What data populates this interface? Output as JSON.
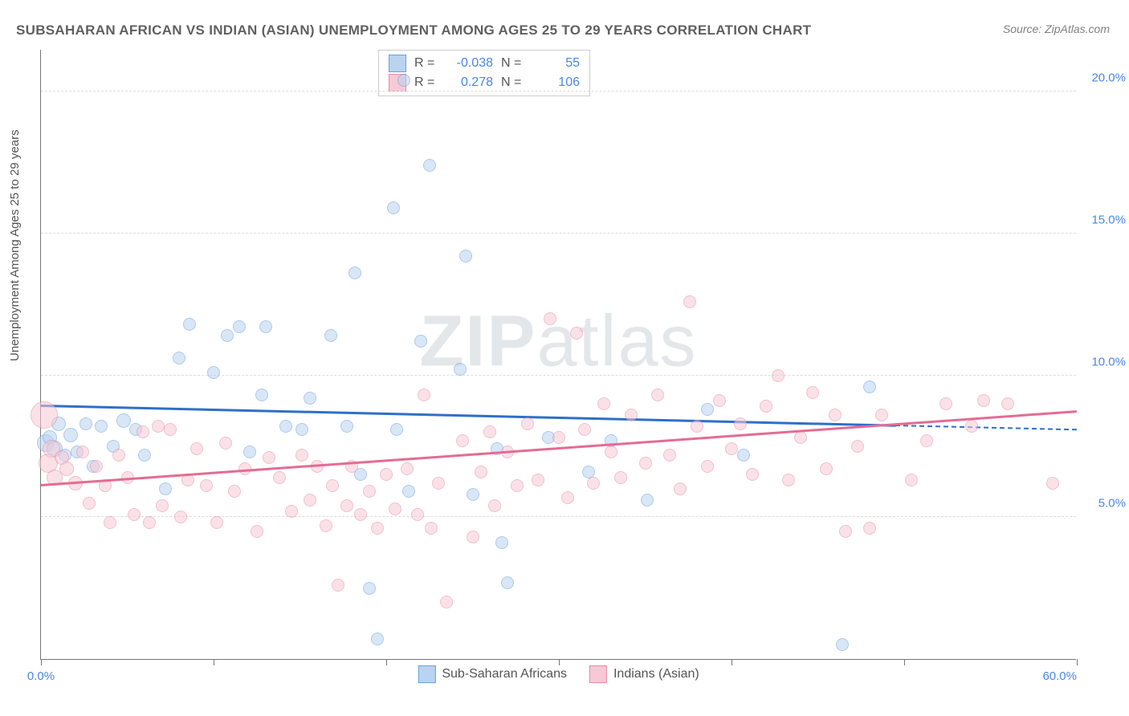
{
  "title": "SUBSAHARAN AFRICAN VS INDIAN (ASIAN) UNEMPLOYMENT AMONG AGES 25 TO 29 YEARS CORRELATION CHART",
  "source": "Source: ZipAtlas.com",
  "ylabel": "Unemployment Among Ages 25 to 29 years",
  "watermark_a": "ZIP",
  "watermark_b": "atlas",
  "chart": {
    "type": "scatter",
    "xlim": [
      0,
      60
    ],
    "ylim": [
      0,
      21.5
    ],
    "xticks": [
      0,
      10,
      20,
      30,
      40,
      50,
      60
    ],
    "xtick_labels_shown": {
      "0": "0.0%",
      "60": "60.0%"
    },
    "yticks": [
      5,
      10,
      15,
      20
    ],
    "ytick_labels": [
      "5.0%",
      "10.0%",
      "15.0%",
      "20.0%"
    ],
    "grid_color": "#dcdcdc",
    "axis_color": "#777777",
    "background_color": "#ffffff",
    "axis_label_color": "#4a86e8"
  },
  "series": [
    {
      "name": "Sub-Saharan Africans",
      "fill_color": "#b9d3f0",
      "stroke_color": "#6aa0de",
      "fill_opacity": 0.55,
      "line_color": "#2e6fc9",
      "correlation": {
        "R": "-0.038",
        "N": "55"
      },
      "trend": {
        "x1": 0,
        "y1": 8.9,
        "x2": 49.5,
        "y2": 8.2,
        "dash_x2": 60,
        "dash_y2": 8.05
      },
      "points": [
        {
          "x": 0.3,
          "y": 7.6,
          "r": 11
        },
        {
          "x": 0.5,
          "y": 7.8,
          "r": 9
        },
        {
          "x": 0.8,
          "y": 7.4,
          "r": 10
        },
        {
          "x": 1.0,
          "y": 8.3,
          "r": 9
        },
        {
          "x": 1.4,
          "y": 7.2,
          "r": 8
        },
        {
          "x": 1.7,
          "y": 7.9,
          "r": 9
        },
        {
          "x": 2.1,
          "y": 7.3,
          "r": 8
        },
        {
          "x": 2.6,
          "y": 8.3,
          "r": 8
        },
        {
          "x": 3.0,
          "y": 6.8,
          "r": 8
        },
        {
          "x": 3.5,
          "y": 8.2,
          "r": 8
        },
        {
          "x": 4.2,
          "y": 7.5,
          "r": 8
        },
        {
          "x": 4.8,
          "y": 8.4,
          "r": 9
        },
        {
          "x": 5.5,
          "y": 8.1,
          "r": 8
        },
        {
          "x": 6.0,
          "y": 7.2,
          "r": 8
        },
        {
          "x": 7.2,
          "y": 6.0,
          "r": 8
        },
        {
          "x": 8.0,
          "y": 10.6,
          "r": 8
        },
        {
          "x": 8.6,
          "y": 11.8,
          "r": 8
        },
        {
          "x": 10.0,
          "y": 10.1,
          "r": 8
        },
        {
          "x": 10.8,
          "y": 11.4,
          "r": 8
        },
        {
          "x": 11.5,
          "y": 11.7,
          "r": 8
        },
        {
          "x": 12.1,
          "y": 7.3,
          "r": 8
        },
        {
          "x": 12.8,
          "y": 9.3,
          "r": 8
        },
        {
          "x": 13.0,
          "y": 11.7,
          "r": 8
        },
        {
          "x": 14.2,
          "y": 8.2,
          "r": 8
        },
        {
          "x": 15.1,
          "y": 8.1,
          "r": 8
        },
        {
          "x": 15.6,
          "y": 9.2,
          "r": 8
        },
        {
          "x": 16.8,
          "y": 11.4,
          "r": 8
        },
        {
          "x": 17.7,
          "y": 8.2,
          "r": 8
        },
        {
          "x": 18.2,
          "y": 13.6,
          "r": 8
        },
        {
          "x": 18.5,
          "y": 6.5,
          "r": 8
        },
        {
          "x": 19.0,
          "y": 2.5,
          "r": 8
        },
        {
          "x": 19.5,
          "y": 0.7,
          "r": 8
        },
        {
          "x": 20.4,
          "y": 15.9,
          "r": 8
        },
        {
          "x": 20.6,
          "y": 8.1,
          "r": 8
        },
        {
          "x": 21.0,
          "y": 20.4,
          "r": 8
        },
        {
          "x": 21.3,
          "y": 5.9,
          "r": 8
        },
        {
          "x": 22.0,
          "y": 11.2,
          "r": 8
        },
        {
          "x": 22.5,
          "y": 17.4,
          "r": 8
        },
        {
          "x": 24.3,
          "y": 10.2,
          "r": 8
        },
        {
          "x": 24.6,
          "y": 14.2,
          "r": 8
        },
        {
          "x": 25.0,
          "y": 5.8,
          "r": 8
        },
        {
          "x": 26.4,
          "y": 7.4,
          "r": 8
        },
        {
          "x": 26.7,
          "y": 4.1,
          "r": 8
        },
        {
          "x": 27.0,
          "y": 2.7,
          "r": 8
        },
        {
          "x": 29.4,
          "y": 7.8,
          "r": 8
        },
        {
          "x": 31.7,
          "y": 6.6,
          "r": 8
        },
        {
          "x": 33.0,
          "y": 7.7,
          "r": 8
        },
        {
          "x": 35.1,
          "y": 5.6,
          "r": 8
        },
        {
          "x": 38.6,
          "y": 8.8,
          "r": 8
        },
        {
          "x": 40.7,
          "y": 7.2,
          "r": 8
        },
        {
          "x": 46.4,
          "y": 0.5,
          "r": 8
        },
        {
          "x": 48.0,
          "y": 9.6,
          "r": 8
        }
      ]
    },
    {
      "name": "Indians (Asian)",
      "fill_color": "#f7c9d6",
      "stroke_color": "#e88ba6",
      "fill_opacity": 0.55,
      "line_color": "#e56b93",
      "correlation": {
        "R": "0.278",
        "N": "106"
      },
      "trend": {
        "x1": 0,
        "y1": 6.1,
        "x2": 60,
        "y2": 8.7
      },
      "points": [
        {
          "x": 0.2,
          "y": 8.6,
          "r": 17
        },
        {
          "x": 0.4,
          "y": 6.9,
          "r": 12
        },
        {
          "x": 0.6,
          "y": 7.4,
          "r": 11
        },
        {
          "x": 0.8,
          "y": 6.4,
          "r": 10
        },
        {
          "x": 1.2,
          "y": 7.1,
          "r": 9
        },
        {
          "x": 1.5,
          "y": 6.7,
          "r": 9
        },
        {
          "x": 2.0,
          "y": 6.2,
          "r": 9
        },
        {
          "x": 2.4,
          "y": 7.3,
          "r": 8
        },
        {
          "x": 2.8,
          "y": 5.5,
          "r": 8
        },
        {
          "x": 3.2,
          "y": 6.8,
          "r": 8
        },
        {
          "x": 3.7,
          "y": 6.1,
          "r": 8
        },
        {
          "x": 4.0,
          "y": 4.8,
          "r": 8
        },
        {
          "x": 4.5,
          "y": 7.2,
          "r": 8
        },
        {
          "x": 5.0,
          "y": 6.4,
          "r": 8
        },
        {
          "x": 5.4,
          "y": 5.1,
          "r": 8
        },
        {
          "x": 5.9,
          "y": 8.0,
          "r": 8
        },
        {
          "x": 6.3,
          "y": 4.8,
          "r": 8
        },
        {
          "x": 6.8,
          "y": 8.2,
          "r": 8
        },
        {
          "x": 7.0,
          "y": 5.4,
          "r": 8
        },
        {
          "x": 7.5,
          "y": 8.1,
          "r": 8
        },
        {
          "x": 8.1,
          "y": 5.0,
          "r": 8
        },
        {
          "x": 8.5,
          "y": 6.3,
          "r": 8
        },
        {
          "x": 9.0,
          "y": 7.4,
          "r": 8
        },
        {
          "x": 9.6,
          "y": 6.1,
          "r": 8
        },
        {
          "x": 10.2,
          "y": 4.8,
          "r": 8
        },
        {
          "x": 10.7,
          "y": 7.6,
          "r": 8
        },
        {
          "x": 11.2,
          "y": 5.9,
          "r": 8
        },
        {
          "x": 11.8,
          "y": 6.7,
          "r": 8
        },
        {
          "x": 12.5,
          "y": 4.5,
          "r": 8
        },
        {
          "x": 13.2,
          "y": 7.1,
          "r": 8
        },
        {
          "x": 13.8,
          "y": 6.4,
          "r": 8
        },
        {
          "x": 14.5,
          "y": 5.2,
          "r": 8
        },
        {
          "x": 15.1,
          "y": 7.2,
          "r": 8
        },
        {
          "x": 15.6,
          "y": 5.6,
          "r": 8
        },
        {
          "x": 16.0,
          "y": 6.8,
          "r": 8
        },
        {
          "x": 16.5,
          "y": 4.7,
          "r": 8
        },
        {
          "x": 16.9,
          "y": 6.1,
          "r": 8
        },
        {
          "x": 17.2,
          "y": 2.6,
          "r": 8
        },
        {
          "x": 17.7,
          "y": 5.4,
          "r": 8
        },
        {
          "x": 18.0,
          "y": 6.8,
          "r": 8
        },
        {
          "x": 18.5,
          "y": 5.1,
          "r": 8
        },
        {
          "x": 19.0,
          "y": 5.9,
          "r": 8
        },
        {
          "x": 19.5,
          "y": 4.6,
          "r": 8
        },
        {
          "x": 20.0,
          "y": 6.5,
          "r": 8
        },
        {
          "x": 20.5,
          "y": 5.3,
          "r": 8
        },
        {
          "x": 21.2,
          "y": 6.7,
          "r": 8
        },
        {
          "x": 21.8,
          "y": 5.1,
          "r": 8
        },
        {
          "x": 22.2,
          "y": 9.3,
          "r": 8
        },
        {
          "x": 22.6,
          "y": 4.6,
          "r": 8
        },
        {
          "x": 23.0,
          "y": 6.2,
          "r": 8
        },
        {
          "x": 23.5,
          "y": 2.0,
          "r": 8
        },
        {
          "x": 24.4,
          "y": 7.7,
          "r": 8
        },
        {
          "x": 25.0,
          "y": 4.3,
          "r": 8
        },
        {
          "x": 25.5,
          "y": 6.6,
          "r": 8
        },
        {
          "x": 26.0,
          "y": 8.0,
          "r": 8
        },
        {
          "x": 26.3,
          "y": 5.4,
          "r": 8
        },
        {
          "x": 27.0,
          "y": 7.3,
          "r": 8
        },
        {
          "x": 27.6,
          "y": 6.1,
          "r": 8
        },
        {
          "x": 28.2,
          "y": 8.3,
          "r": 8
        },
        {
          "x": 28.8,
          "y": 6.3,
          "r": 8
        },
        {
          "x": 29.5,
          "y": 12.0,
          "r": 8
        },
        {
          "x": 30.0,
          "y": 7.8,
          "r": 8
        },
        {
          "x": 30.5,
          "y": 5.7,
          "r": 8
        },
        {
          "x": 31.0,
          "y": 11.5,
          "r": 8
        },
        {
          "x": 31.5,
          "y": 8.1,
          "r": 8
        },
        {
          "x": 32.0,
          "y": 6.2,
          "r": 8
        },
        {
          "x": 32.6,
          "y": 9.0,
          "r": 8
        },
        {
          "x": 33.0,
          "y": 7.3,
          "r": 8
        },
        {
          "x": 33.6,
          "y": 6.4,
          "r": 8
        },
        {
          "x": 34.2,
          "y": 8.6,
          "r": 8
        },
        {
          "x": 35.0,
          "y": 6.9,
          "r": 8
        },
        {
          "x": 35.7,
          "y": 9.3,
          "r": 8
        },
        {
          "x": 36.4,
          "y": 7.2,
          "r": 8
        },
        {
          "x": 37.0,
          "y": 6.0,
          "r": 8
        },
        {
          "x": 37.6,
          "y": 12.6,
          "r": 8
        },
        {
          "x": 38.0,
          "y": 8.2,
          "r": 8
        },
        {
          "x": 38.6,
          "y": 6.8,
          "r": 8
        },
        {
          "x": 39.3,
          "y": 9.1,
          "r": 8
        },
        {
          "x": 40.0,
          "y": 7.4,
          "r": 8
        },
        {
          "x": 40.5,
          "y": 8.3,
          "r": 8
        },
        {
          "x": 41.2,
          "y": 6.5,
          "r": 8
        },
        {
          "x": 42.0,
          "y": 8.9,
          "r": 8
        },
        {
          "x": 42.7,
          "y": 10.0,
          "r": 8
        },
        {
          "x": 43.3,
          "y": 6.3,
          "r": 8
        },
        {
          "x": 44.0,
          "y": 7.8,
          "r": 8
        },
        {
          "x": 44.7,
          "y": 9.4,
          "r": 8
        },
        {
          "x": 45.5,
          "y": 6.7,
          "r": 8
        },
        {
          "x": 46.0,
          "y": 8.6,
          "r": 8
        },
        {
          "x": 46.6,
          "y": 4.5,
          "r": 8
        },
        {
          "x": 47.3,
          "y": 7.5,
          "r": 8
        },
        {
          "x": 48.0,
          "y": 4.6,
          "r": 8
        },
        {
          "x": 48.7,
          "y": 8.6,
          "r": 8
        },
        {
          "x": 50.4,
          "y": 6.3,
          "r": 8
        },
        {
          "x": 51.3,
          "y": 7.7,
          "r": 8
        },
        {
          "x": 52.4,
          "y": 9.0,
          "r": 8
        },
        {
          "x": 53.9,
          "y": 8.2,
          "r": 8
        },
        {
          "x": 54.6,
          "y": 9.1,
          "r": 8
        },
        {
          "x": 56.0,
          "y": 9.0,
          "r": 8
        },
        {
          "x": 58.6,
          "y": 6.2,
          "r": 8
        }
      ]
    }
  ],
  "legend_labels": {
    "R": "R =",
    "N": "N ="
  }
}
